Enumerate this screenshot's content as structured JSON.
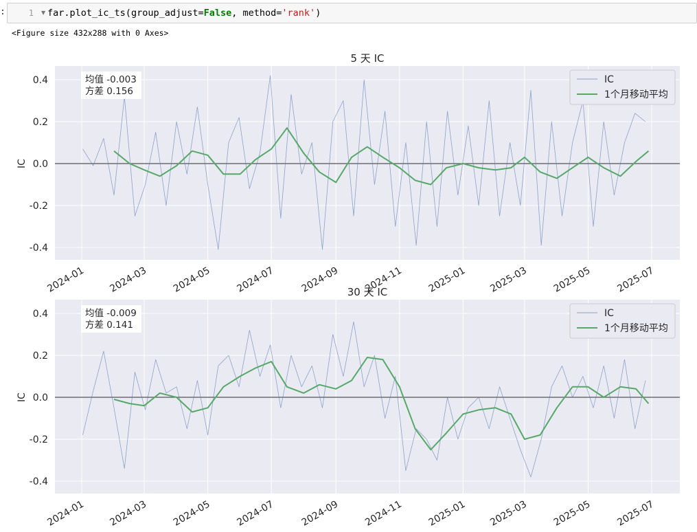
{
  "code_cell": {
    "prompt": ":",
    "line_number": "1",
    "code": {
      "object": "far",
      "method": ".plot_ic_ts(",
      "arg1_name": "group_adjust=",
      "arg1_value": "False",
      "sep": ", ",
      "arg2_name": "method=",
      "arg2_value": "'rank'",
      "close": ")"
    }
  },
  "output_text": "<Figure size 432x288 with 0 Axes>",
  "chart_data": [
    {
      "type": "line",
      "title": "5 天 IC",
      "ylabel": "IC",
      "ylim": [
        -0.45,
        0.46
      ],
      "yticks": [
        -0.4,
        -0.2,
        0.0,
        0.2,
        0.4
      ],
      "ytick_labels": [
        "-0.4",
        "-0.2",
        "0.0",
        "0.2",
        "0.4"
      ],
      "xticks": [
        "2024-01-01",
        "2024-03-01",
        "2024-05-01",
        "2024-07-01",
        "2024-09-01",
        "2024-11-01",
        "2025-01-01",
        "2025-03-01",
        "2025-05-01",
        "2025-07-01"
      ],
      "xtick_labels": [
        "2024-01",
        "2024-03",
        "2024-05",
        "2024-07",
        "2024-09",
        "2024-11",
        "2025-01",
        "2025-03",
        "2025-05",
        "2025-07"
      ],
      "grid": true,
      "hline": 0.0,
      "stats_box": [
        "均值 -0.003",
        "方差 0.156"
      ],
      "legend": {
        "position": "top-right",
        "entries": [
          "IC",
          "1个月移动平均"
        ]
      },
      "series": [
        {
          "name": "IC",
          "color": "#4c72b0",
          "x": [
            "2024-01-02",
            "2024-01-12",
            "2024-01-22",
            "2024-02-01",
            "2024-02-11",
            "2024-02-21",
            "2024-03-02",
            "2024-03-12",
            "2024-03-22",
            "2024-04-01",
            "2024-04-11",
            "2024-04-21",
            "2024-05-01",
            "2024-05-11",
            "2024-05-21",
            "2024-05-31",
            "2024-06-10",
            "2024-06-20",
            "2024-06-30",
            "2024-07-10",
            "2024-07-20",
            "2024-07-30",
            "2024-08-09",
            "2024-08-19",
            "2024-08-29",
            "2024-09-08",
            "2024-09-18",
            "2024-09-28",
            "2024-10-08",
            "2024-10-18",
            "2024-10-28",
            "2024-11-07",
            "2024-11-17",
            "2024-11-27",
            "2024-12-07",
            "2024-12-17",
            "2024-12-27",
            "2025-01-06",
            "2025-01-16",
            "2025-01-26",
            "2025-02-05",
            "2025-02-15",
            "2025-02-25",
            "2025-03-07",
            "2025-03-17",
            "2025-03-27",
            "2025-04-06",
            "2025-04-16",
            "2025-04-26",
            "2025-05-06",
            "2025-05-16",
            "2025-05-26",
            "2025-06-05",
            "2025-06-15",
            "2025-06-25"
          ],
          "values": [
            0.07,
            -0.01,
            0.12,
            -0.15,
            0.32,
            -0.25,
            -0.1,
            0.15,
            -0.2,
            0.2,
            -0.05,
            0.27,
            -0.1,
            -0.41,
            0.1,
            0.22,
            -0.12,
            0.05,
            0.42,
            -0.26,
            0.33,
            -0.05,
            0.1,
            -0.41,
            0.2,
            0.3,
            -0.25,
            0.4,
            -0.1,
            0.25,
            -0.3,
            0.1,
            -0.39,
            0.2,
            -0.3,
            0.25,
            -0.15,
            0.18,
            -0.2,
            0.3,
            -0.25,
            0.1,
            -0.2,
            0.35,
            -0.39,
            0.2,
            -0.25,
            0.1,
            0.3,
            -0.3,
            0.2,
            -0.15,
            0.1,
            0.24,
            0.2
          ]
        },
        {
          "name": "1个月移动平均",
          "color": "#55a868",
          "x": [
            "2024-02-01",
            "2024-02-16",
            "2024-03-01",
            "2024-03-16",
            "2024-04-01",
            "2024-04-16",
            "2024-05-01",
            "2024-05-16",
            "2024-06-01",
            "2024-06-16",
            "2024-07-01",
            "2024-07-16",
            "2024-08-01",
            "2024-08-16",
            "2024-09-01",
            "2024-09-16",
            "2024-10-01",
            "2024-10-16",
            "2024-11-01",
            "2024-11-16",
            "2024-12-01",
            "2024-12-16",
            "2025-01-01",
            "2025-01-16",
            "2025-02-01",
            "2025-02-16",
            "2025-03-01",
            "2025-03-16",
            "2025-04-01",
            "2025-04-16",
            "2025-05-01",
            "2025-05-16",
            "2025-06-01",
            "2025-06-16",
            "2025-06-28"
          ],
          "values": [
            0.06,
            0.0,
            -0.03,
            -0.06,
            -0.01,
            0.06,
            0.04,
            -0.05,
            -0.05,
            0.02,
            0.07,
            0.17,
            0.05,
            -0.04,
            -0.09,
            0.03,
            0.08,
            0.03,
            -0.02,
            -0.08,
            -0.1,
            -0.02,
            0.0,
            -0.02,
            -0.03,
            -0.02,
            0.03,
            -0.04,
            -0.07,
            -0.02,
            0.03,
            -0.02,
            -0.06,
            0.01,
            0.06
          ]
        }
      ]
    },
    {
      "type": "line",
      "title": "30 天 IC",
      "ylabel": "IC",
      "ylim": [
        -0.45,
        0.46
      ],
      "yticks": [
        -0.4,
        -0.2,
        0.0,
        0.2,
        0.4
      ],
      "ytick_labels": [
        "-0.4",
        "-0.2",
        "0.0",
        "0.2",
        "0.4"
      ],
      "xticks": [
        "2024-01-01",
        "2024-03-01",
        "2024-05-01",
        "2024-07-01",
        "2024-09-01",
        "2024-11-01",
        "2025-01-01",
        "2025-03-01",
        "2025-05-01",
        "2025-07-01"
      ],
      "xtick_labels": [
        "2024-01",
        "2024-03",
        "2024-05",
        "2024-07",
        "2024-09",
        "2024-11",
        "2025-01",
        "2025-03",
        "2025-05",
        "2025-07"
      ],
      "grid": true,
      "hline": 0.0,
      "stats_box": [
        "均值 -0.009",
        "方差 0.141"
      ],
      "legend": {
        "position": "top-right",
        "entries": [
          "IC",
          "1个月移动平均"
        ]
      },
      "series": [
        {
          "name": "IC",
          "color": "#4c72b0",
          "x": [
            "2024-01-02",
            "2024-01-12",
            "2024-01-22",
            "2024-02-01",
            "2024-02-11",
            "2024-02-21",
            "2024-03-02",
            "2024-03-12",
            "2024-03-22",
            "2024-04-01",
            "2024-04-11",
            "2024-04-21",
            "2024-05-01",
            "2024-05-11",
            "2024-05-21",
            "2024-05-31",
            "2024-06-10",
            "2024-06-20",
            "2024-06-30",
            "2024-07-10",
            "2024-07-20",
            "2024-07-30",
            "2024-08-09",
            "2024-08-19",
            "2024-08-29",
            "2024-09-08",
            "2024-09-18",
            "2024-09-28",
            "2024-10-08",
            "2024-10-18",
            "2024-10-28",
            "2024-11-07",
            "2024-11-17",
            "2024-11-27",
            "2024-12-07",
            "2024-12-17",
            "2024-12-27",
            "2025-01-06",
            "2025-01-16",
            "2025-01-26",
            "2025-02-05",
            "2025-02-15",
            "2025-02-25",
            "2025-03-07",
            "2025-03-17",
            "2025-03-27",
            "2025-04-06",
            "2025-04-16",
            "2025-04-26",
            "2025-05-06",
            "2025-05-16",
            "2025-05-26",
            "2025-06-05",
            "2025-06-15",
            "2025-06-25"
          ],
          "values": [
            -0.18,
            0.03,
            0.22,
            -0.05,
            -0.34,
            0.12,
            -0.06,
            0.18,
            0.02,
            0.05,
            -0.15,
            0.08,
            -0.18,
            0.15,
            0.2,
            0.05,
            0.32,
            0.1,
            0.25,
            -0.05,
            0.2,
            0.05,
            0.15,
            -0.05,
            0.3,
            0.1,
            0.36,
            0.05,
            0.2,
            -0.1,
            0.1,
            -0.35,
            -0.15,
            -0.2,
            -0.3,
            0.0,
            -0.2,
            -0.05,
            0.0,
            -0.15,
            0.05,
            -0.1,
            -0.25,
            -0.38,
            -0.2,
            0.05,
            0.15,
            0.0,
            0.1,
            -0.05,
            0.15,
            -0.1,
            0.18,
            -0.15,
            0.08
          ]
        },
        {
          "name": "1个月移动平均",
          "color": "#55a868",
          "x": [
            "2024-02-01",
            "2024-02-16",
            "2024-03-01",
            "2024-03-16",
            "2024-04-01",
            "2024-04-16",
            "2024-05-01",
            "2024-05-16",
            "2024-06-01",
            "2024-06-16",
            "2024-07-01",
            "2024-07-16",
            "2024-08-01",
            "2024-08-16",
            "2024-09-01",
            "2024-09-16",
            "2024-10-01",
            "2024-10-16",
            "2024-11-01",
            "2024-11-16",
            "2024-12-01",
            "2024-12-16",
            "2025-01-01",
            "2025-01-16",
            "2025-02-01",
            "2025-02-16",
            "2025-03-01",
            "2025-03-16",
            "2025-04-01",
            "2025-04-16",
            "2025-05-01",
            "2025-05-16",
            "2025-06-01",
            "2025-06-16",
            "2025-06-28"
          ],
          "values": [
            -0.01,
            -0.03,
            -0.04,
            0.02,
            0.0,
            -0.07,
            -0.05,
            0.05,
            0.1,
            0.14,
            0.17,
            0.05,
            0.02,
            0.06,
            0.04,
            0.08,
            0.19,
            0.18,
            0.05,
            -0.15,
            -0.25,
            -0.17,
            -0.08,
            -0.06,
            -0.05,
            -0.08,
            -0.2,
            -0.18,
            -0.05,
            0.05,
            0.05,
            0.0,
            0.05,
            0.04,
            -0.03
          ]
        }
      ]
    }
  ]
}
